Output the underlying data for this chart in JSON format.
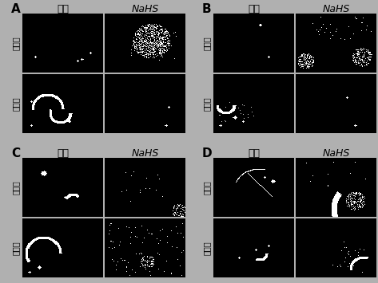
{
  "panel_labels": [
    "A",
    "B",
    "C",
    "D"
  ],
  "col_headers": [
    "对照",
    "NaHS"
  ],
  "row_labels_upper": "上表皮",
  "row_labels_lower": "下表皮",
  "bg_color": "#000000",
  "text_color": "#ffffff",
  "label_color": "#000000",
  "panel_label_color": "#000000",
  "fig_bg": "#c8c8c8",
  "title_fontsize": 9,
  "panel_label_fontsize": 11,
  "row_label_fontsize": 7,
  "n_panels_row": 2,
  "n_panels_col": 2
}
